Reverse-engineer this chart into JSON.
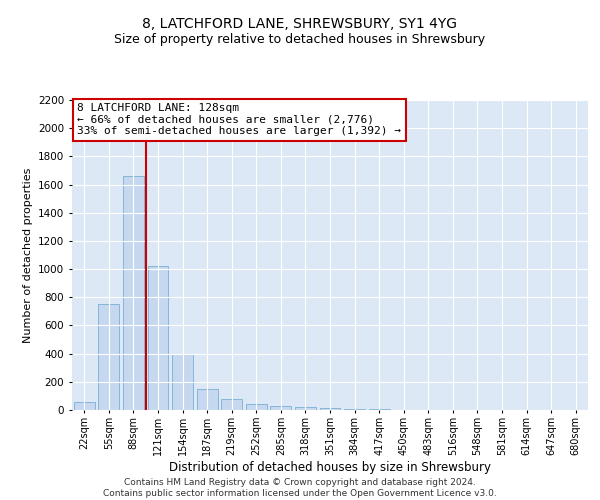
{
  "title1": "8, LATCHFORD LANE, SHREWSBURY, SY1 4YG",
  "title2": "Size of property relative to detached houses in Shrewsbury",
  "xlabel": "Distribution of detached houses by size in Shrewsbury",
  "ylabel": "Number of detached properties",
  "bin_labels": [
    "22sqm",
    "55sqm",
    "88sqm",
    "121sqm",
    "154sqm",
    "187sqm",
    "219sqm",
    "252sqm",
    "285sqm",
    "318sqm",
    "351sqm",
    "384sqm",
    "417sqm",
    "450sqm",
    "483sqm",
    "516sqm",
    "548sqm",
    "581sqm",
    "614sqm",
    "647sqm",
    "680sqm"
  ],
  "bar_values": [
    60,
    750,
    1660,
    1025,
    400,
    150,
    75,
    40,
    30,
    20,
    15,
    8,
    5,
    3,
    2,
    1,
    1,
    0,
    0,
    0,
    0
  ],
  "bar_color": "#c5d8ef",
  "bar_edge_color": "#7aafd4",
  "vline_color": "#cc0000",
  "vline_bin_index": 3,
  "annotation_text": "8 LATCHFORD LANE: 128sqm\n← 66% of detached houses are smaller (2,776)\n33% of semi-detached houses are larger (1,392) →",
  "annotation_box_facecolor": "#ffffff",
  "annotation_box_edge": "#cc0000",
  "ylim": [
    0,
    2200
  ],
  "yticks": [
    0,
    200,
    400,
    600,
    800,
    1000,
    1200,
    1400,
    1600,
    1800,
    2000,
    2200
  ],
  "bg_color": "#dce8f5",
  "footnote": "Contains HM Land Registry data © Crown copyright and database right 2024.\nContains public sector information licensed under the Open Government Licence v3.0.",
  "title1_fontsize": 10,
  "title2_fontsize": 9,
  "xlabel_fontsize": 8.5,
  "ylabel_fontsize": 8,
  "annotation_fontsize": 8,
  "footnote_fontsize": 6.5,
  "tick_labelsize": 7,
  "ytick_labelsize": 7.5
}
